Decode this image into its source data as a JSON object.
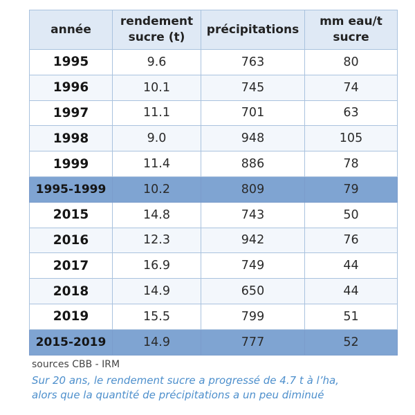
{
  "table": {
    "headers": [
      "année",
      "rendement\nsucre (t)",
      "précipitations",
      "mm eau/t\nsucre"
    ],
    "rows": [
      {
        "year": "1995",
        "yield": "9.6",
        "rain": "763",
        "water": "80",
        "avg": false
      },
      {
        "year": "1996",
        "yield": "10.1",
        "rain": "745",
        "water": "74",
        "avg": false
      },
      {
        "year": "1997",
        "yield": "11.1",
        "rain": "701",
        "water": "63",
        "avg": false
      },
      {
        "year": "1998",
        "yield": "9.0",
        "rain": "948",
        "water": "105",
        "avg": false
      },
      {
        "year": "1999",
        "yield": "11.4",
        "rain": "886",
        "water": "78",
        "avg": false
      },
      {
        "year": "1995-1999",
        "yield": "10.2",
        "rain": "809",
        "water": "79",
        "avg": true
      },
      {
        "year": "2015",
        "yield": "14.8",
        "rain": "743",
        "water": "50",
        "avg": false
      },
      {
        "year": "2016",
        "yield": "12.3",
        "rain": "942",
        "water": "76",
        "avg": false
      },
      {
        "year": "2017",
        "yield": "16.9",
        "rain": "749",
        "water": "44",
        "avg": false
      },
      {
        "year": "2018",
        "yield": "14.9",
        "rain": "650",
        "water": "44",
        "avg": false
      },
      {
        "year": "2019",
        "yield": "15.5",
        "rain": "799",
        "water": "51",
        "avg": false
      },
      {
        "year": "2015-2019",
        "yield": "14.9",
        "rain": "777",
        "water": "52",
        "avg": true
      }
    ]
  },
  "sources": "sources CBB - IRM",
  "note": {
    "line1": "Sur 20 ans, le rendement sucre a progressé de 4.7 t à l’ha,",
    "line2": "alors que la quantité de précipitations a un peu diminué"
  },
  "colors": {
    "header_bg": "#dfe9f5",
    "row_light": "#f3f7fc",
    "avg_row": "#7fa4d2",
    "border": "#a9c2de",
    "note_text": "#4d8fcc"
  }
}
